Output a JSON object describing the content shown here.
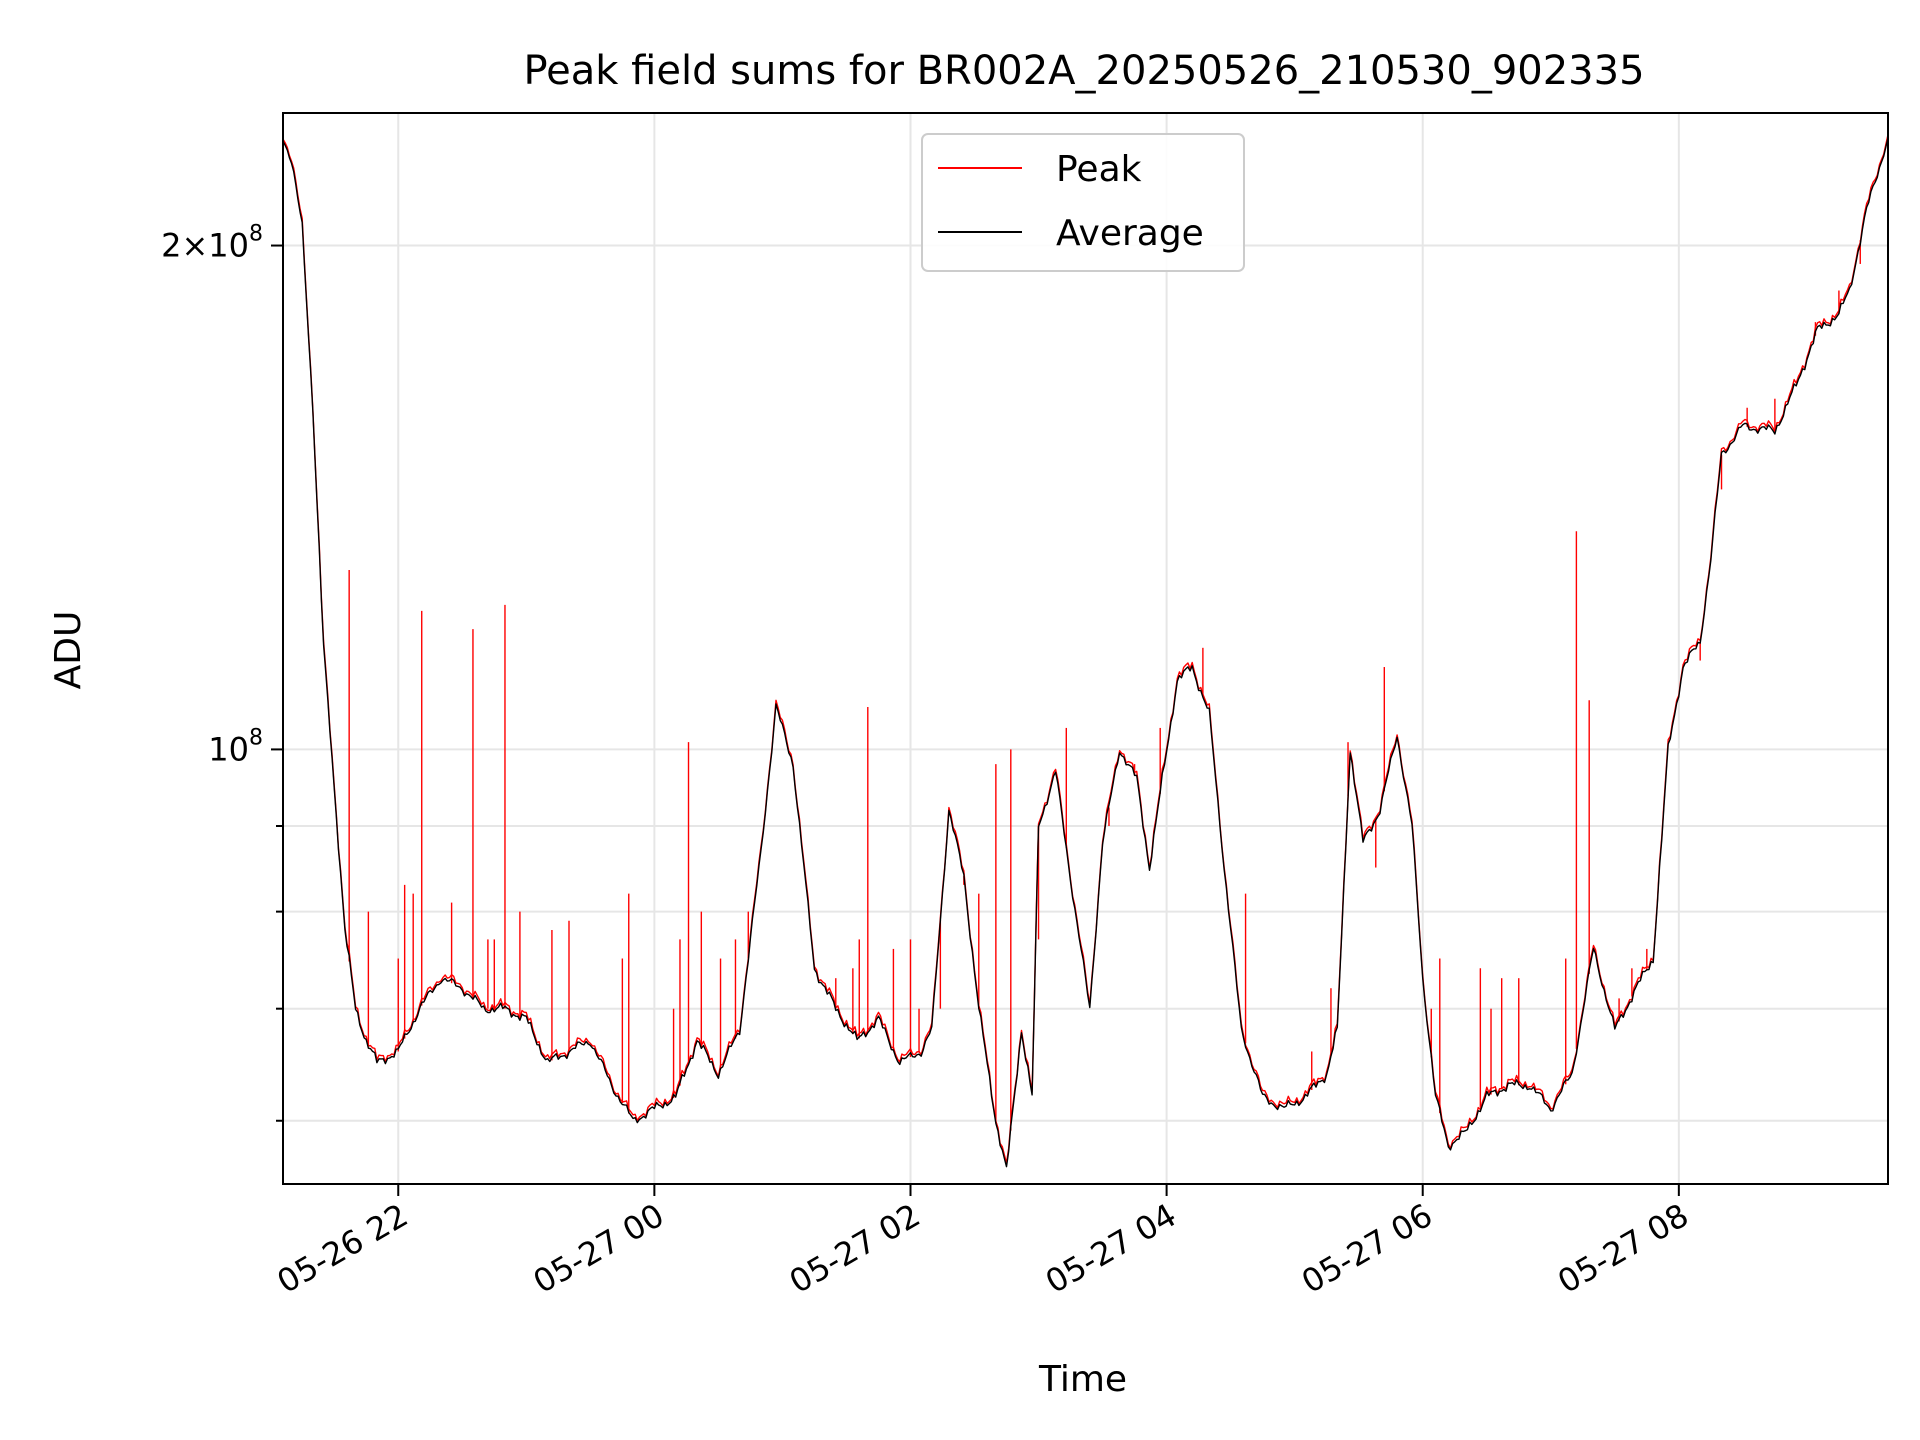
{
  "chart_data": {
    "type": "line",
    "title": "Peak field sums for BR002A_20250526_210530_902335",
    "xlabel": "Time",
    "ylabel": "ADU",
    "x_range": [
      "2025-05-26 21:06",
      "2025-05-27 09:38"
    ],
    "x_ticks": [
      {
        "t": "2025-05-26 22:00",
        "label": "05-26 22"
      },
      {
        "t": "2025-05-27 00:00",
        "label": "05-27 00"
      },
      {
        "t": "2025-05-27 02:00",
        "label": "05-27 02"
      },
      {
        "t": "2025-05-27 04:00",
        "label": "05-27 04"
      },
      {
        "t": "2025-05-27 06:00",
        "label": "05-27 06"
      },
      {
        "t": "2025-05-27 08:00",
        "label": "05-27 08"
      }
    ],
    "y_scale": "log",
    "ylim": [
      55000000,
      240000000
    ],
    "y_major_ticks": [
      {
        "value": 100000000,
        "base": "10",
        "exp": "8"
      },
      {
        "value": 200000000,
        "base": "2×10",
        "exp": "8"
      }
    ],
    "y_minor_ticks": [
      60000000,
      70000000,
      80000000,
      90000000
    ],
    "grid": true,
    "legend_position": "top-center",
    "series": [
      {
        "name": "Peak",
        "color": "#ff0000",
        "baseline": [
          [
            "2025-05-26 21:06",
            232000000
          ],
          [
            "2025-05-26 21:10",
            225000000
          ],
          [
            "2025-05-26 21:15",
            205000000
          ],
          [
            "2025-05-26 21:20",
            160000000
          ],
          [
            "2025-05-26 21:25",
            115000000
          ],
          [
            "2025-05-26 21:30",
            95000000
          ],
          [
            "2025-05-26 21:35",
            78000000
          ],
          [
            "2025-05-26 21:40",
            70000000
          ],
          [
            "2025-05-26 21:45",
            67000000
          ],
          [
            "2025-05-26 21:50",
            65000000
          ],
          [
            "2025-05-26 22:00",
            66000000
          ],
          [
            "2025-05-26 22:10",
            70000000
          ],
          [
            "2025-05-26 22:20",
            73000000
          ],
          [
            "2025-05-26 22:30",
            72000000
          ],
          [
            "2025-05-26 22:40",
            70000000
          ],
          [
            "2025-05-26 22:50",
            70000000
          ],
          [
            "2025-05-26 23:00",
            69000000
          ],
          [
            "2025-05-26 23:10",
            65000000
          ],
          [
            "2025-05-26 23:20",
            66000000
          ],
          [
            "2025-05-26 23:30",
            67000000
          ],
          [
            "2025-05-26 23:40",
            63000000
          ],
          [
            "2025-05-26 23:50",
            60000000
          ],
          [
            "2025-05-27 00:00",
            61000000
          ],
          [
            "2025-05-27 00:10",
            62000000
          ],
          [
            "2025-05-27 00:20",
            67000000
          ],
          [
            "2025-05-27 00:30",
            64000000
          ],
          [
            "2025-05-27 00:40",
            68000000
          ],
          [
            "2025-05-27 00:50",
            87000000
          ],
          [
            "2025-05-27 00:57",
            106000000
          ],
          [
            "2025-05-27 01:05",
            98000000
          ],
          [
            "2025-05-27 01:15",
            74000000
          ],
          [
            "2025-05-27 01:25",
            70000000
          ],
          [
            "2025-05-27 01:35",
            67000000
          ],
          [
            "2025-05-27 01:45",
            69000000
          ],
          [
            "2025-05-27 01:55",
            65000000
          ],
          [
            "2025-05-27 02:05",
            66000000
          ],
          [
            "2025-05-27 02:10",
            68000000
          ],
          [
            "2025-05-27 02:18",
            92000000
          ],
          [
            "2025-05-27 02:25",
            84000000
          ],
          [
            "2025-05-27 02:32",
            70000000
          ],
          [
            "2025-05-27 02:40",
            60000000
          ],
          [
            "2025-05-27 02:45",
            56000000
          ],
          [
            "2025-05-27 02:52",
            68000000
          ],
          [
            "2025-05-27 02:57",
            62000000
          ],
          [
            "2025-05-27 03:00",
            90000000
          ],
          [
            "2025-05-27 03:08",
            97000000
          ],
          [
            "2025-05-27 03:16",
            82000000
          ],
          [
            "2025-05-27 03:24",
            70000000
          ],
          [
            "2025-05-27 03:30",
            88000000
          ],
          [
            "2025-05-27 03:38",
            100000000
          ],
          [
            "2025-05-27 03:46",
            96000000
          ],
          [
            "2025-05-27 03:52",
            85000000
          ],
          [
            "2025-05-27 03:58",
            96000000
          ],
          [
            "2025-05-27 04:05",
            110000000
          ],
          [
            "2025-05-27 04:12",
            112000000
          ],
          [
            "2025-05-27 04:20",
            105000000
          ],
          [
            "2025-05-27 04:27",
            85000000
          ],
          [
            "2025-05-27 04:35",
            68000000
          ],
          [
            "2025-05-27 04:45",
            62000000
          ],
          [
            "2025-05-27 04:55",
            61000000
          ],
          [
            "2025-05-27 05:05",
            62000000
          ],
          [
            "2025-05-27 05:15",
            64000000
          ],
          [
            "2025-05-27 05:20",
            68000000
          ],
          [
            "2025-05-27 05:26",
            100000000
          ],
          [
            "2025-05-27 05:32",
            88000000
          ],
          [
            "2025-05-27 05:40",
            92000000
          ],
          [
            "2025-05-27 05:48",
            102000000
          ],
          [
            "2025-05-27 05:55",
            90000000
          ],
          [
            "2025-05-27 06:00",
            73000000
          ],
          [
            "2025-05-27 06:06",
            62000000
          ],
          [
            "2025-05-27 06:12",
            58000000
          ],
          [
            "2025-05-27 06:20",
            59000000
          ],
          [
            "2025-05-27 06:30",
            62000000
          ],
          [
            "2025-05-27 06:40",
            63000000
          ],
          [
            "2025-05-27 06:50",
            63000000
          ],
          [
            "2025-05-27 07:00",
            61000000
          ],
          [
            "2025-05-27 07:10",
            64000000
          ],
          [
            "2025-05-27 07:20",
            76000000
          ],
          [
            "2025-05-27 07:30",
            68000000
          ],
          [
            "2025-05-27 07:40",
            72000000
          ],
          [
            "2025-05-27 07:48",
            75000000
          ],
          [
            "2025-05-27 07:55",
            100000000
          ],
          [
            "2025-05-27 08:02",
            112000000
          ],
          [
            "2025-05-27 08:10",
            116000000
          ],
          [
            "2025-05-27 08:15",
            130000000
          ],
          [
            "2025-05-27 08:20",
            150000000
          ],
          [
            "2025-05-27 08:30",
            156000000
          ],
          [
            "2025-05-27 08:45",
            155000000
          ],
          [
            "2025-05-27 08:55",
            165000000
          ],
          [
            "2025-05-27 09:05",
            178000000
          ],
          [
            "2025-05-27 09:15",
            182000000
          ],
          [
            "2025-05-27 09:20",
            188000000
          ],
          [
            "2025-05-27 09:28",
            210000000
          ],
          [
            "2025-05-27 09:38",
            232000000
          ]
        ],
        "spikes": [
          [
            "2025-05-26 21:37",
            128000000
          ],
          [
            "2025-05-26 21:46",
            80000000
          ],
          [
            "2025-05-26 22:00",
            75000000
          ],
          [
            "2025-05-26 22:03",
            83000000
          ],
          [
            "2025-05-26 22:07",
            82000000
          ],
          [
            "2025-05-26 22:11",
            121000000
          ],
          [
            "2025-05-26 22:25",
            81000000
          ],
          [
            "2025-05-26 22:35",
            118000000
          ],
          [
            "2025-05-26 22:42",
            77000000
          ],
          [
            "2025-05-26 22:45",
            77000000
          ],
          [
            "2025-05-26 22:50",
            122000000
          ],
          [
            "2025-05-26 22:57",
            80000000
          ],
          [
            "2025-05-26 23:12",
            78000000
          ],
          [
            "2025-05-26 23:20",
            79000000
          ],
          [
            "2025-05-26 23:45",
            75000000
          ],
          [
            "2025-05-26 23:48",
            82000000
          ],
          [
            "2025-05-27 00:09",
            70000000
          ],
          [
            "2025-05-27 00:12",
            77000000
          ],
          [
            "2025-05-27 00:16",
            101000000
          ],
          [
            "2025-05-27 00:22",
            80000000
          ],
          [
            "2025-05-27 00:31",
            75000000
          ],
          [
            "2025-05-27 00:38",
            77000000
          ],
          [
            "2025-05-27 00:44",
            80000000
          ],
          [
            "2025-05-27 01:25",
            73000000
          ],
          [
            "2025-05-27 01:33",
            74000000
          ],
          [
            "2025-05-27 01:36",
            77000000
          ],
          [
            "2025-05-27 01:40",
            106000000
          ],
          [
            "2025-05-27 01:52",
            76000000
          ],
          [
            "2025-05-27 02:00",
            77000000
          ],
          [
            "2025-05-27 02:04",
            70000000
          ],
          [
            "2025-05-27 02:14",
            70000000
          ],
          [
            "2025-05-27 02:25",
            83000000
          ],
          [
            "2025-05-27 02:32",
            82000000
          ],
          [
            "2025-05-27 02:40",
            98000000
          ],
          [
            "2025-05-27 02:47",
            100000000
          ],
          [
            "2025-05-27 03:00",
            77000000
          ],
          [
            "2025-05-27 03:13",
            103000000
          ],
          [
            "2025-05-27 03:33",
            90000000
          ],
          [
            "2025-05-27 03:45",
            98000000
          ],
          [
            "2025-05-27 03:57",
            103000000
          ],
          [
            "2025-05-27 04:17",
            115000000
          ],
          [
            "2025-05-27 04:37",
            82000000
          ],
          [
            "2025-05-27 05:08",
            66000000
          ],
          [
            "2025-05-27 05:17",
            72000000
          ],
          [
            "2025-05-27 05:25",
            101000000
          ],
          [
            "2025-05-27 05:38",
            85000000
          ],
          [
            "2025-05-27 05:42",
            112000000
          ],
          [
            "2025-05-27 06:04",
            70000000
          ],
          [
            "2025-05-27 06:08",
            75000000
          ],
          [
            "2025-05-27 06:27",
            74000000
          ],
          [
            "2025-05-27 06:32",
            70000000
          ],
          [
            "2025-05-27 06:37",
            73000000
          ],
          [
            "2025-05-27 06:45",
            73000000
          ],
          [
            "2025-05-27 07:07",
            75000000
          ],
          [
            "2025-05-27 07:12",
            135000000
          ],
          [
            "2025-05-27 07:18",
            107000000
          ],
          [
            "2025-05-27 07:32",
            71000000
          ],
          [
            "2025-05-27 07:38",
            74000000
          ],
          [
            "2025-05-27 07:45",
            76000000
          ],
          [
            "2025-05-27 08:10",
            113000000
          ],
          [
            "2025-05-27 08:20",
            143000000
          ],
          [
            "2025-05-27 08:32",
            160000000
          ],
          [
            "2025-05-27 08:45",
            162000000
          ],
          [
            "2025-05-27 09:04",
            180000000
          ],
          [
            "2025-05-27 09:15",
            188000000
          ],
          [
            "2025-05-27 09:25",
            195000000
          ]
        ]
      },
      {
        "name": "Average",
        "color": "#000000",
        "same_trace_as": "Peak"
      }
    ]
  }
}
